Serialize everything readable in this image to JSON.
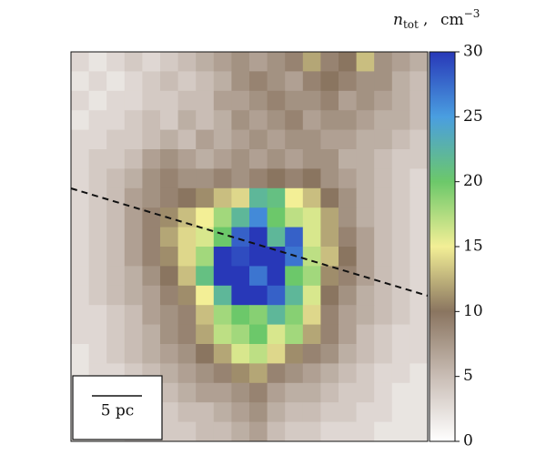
{
  "chart_data": {
    "type": "heatmap",
    "colorbar_label": {
      "symbol": "n",
      "subscript": "tot",
      "unit": "cm",
      "exponent": "−3"
    },
    "scale_bar_label": "5 pc",
    "zlim": [
      0,
      30
    ],
    "zticks": [
      0,
      5,
      10,
      15,
      20,
      25,
      30
    ],
    "colorscale": [
      "#ffffff",
      "#c9bdb5",
      "#8a7560",
      "#f3ef96",
      "#6cc86a",
      "#4a9ee0",
      "#2838b8"
    ],
    "z": [
      [
        3,
        2,
        3,
        4,
        3,
        4,
        5,
        6,
        7,
        8,
        7,
        8,
        9,
        12,
        9,
        10,
        13,
        8,
        7,
        6
      ],
      [
        2,
        3,
        2,
        3,
        4,
        5,
        4,
        5,
        6,
        8,
        9,
        8,
        7,
        9,
        10,
        9,
        8,
        8,
        6,
        5
      ],
      [
        3,
        2,
        3,
        3,
        4,
        4,
        5,
        5,
        7,
        7,
        8,
        9,
        8,
        8,
        9,
        7,
        8,
        7,
        6,
        5
      ],
      [
        2,
        3,
        3,
        4,
        5,
        4,
        6,
        5,
        6,
        8,
        7,
        8,
        9,
        7,
        8,
        8,
        7,
        6,
        6,
        5
      ],
      [
        3,
        3,
        4,
        4,
        5,
        6,
        5,
        7,
        6,
        7,
        8,
        7,
        8,
        8,
        7,
        7,
        6,
        6,
        5,
        4
      ],
      [
        3,
        4,
        4,
        5,
        7,
        8,
        7,
        6,
        7,
        8,
        7,
        8,
        7,
        8,
        8,
        6,
        6,
        5,
        4,
        4
      ],
      [
        3,
        4,
        5,
        6,
        8,
        9,
        8,
        8,
        9,
        8,
        9,
        10,
        9,
        10,
        8,
        7,
        6,
        5,
        4,
        3
      ],
      [
        3,
        4,
        5,
        7,
        8,
        9,
        10,
        11,
        13,
        14,
        22,
        21,
        15,
        13,
        10,
        8,
        6,
        5,
        4,
        3
      ],
      [
        3,
        4,
        5,
        7,
        9,
        11,
        13,
        15,
        18,
        22,
        26,
        20,
        17,
        16,
        12,
        8,
        6,
        5,
        4,
        3
      ],
      [
        3,
        4,
        5,
        7,
        9,
        12,
        14,
        16,
        20,
        28,
        30,
        22,
        28,
        16,
        12,
        9,
        7,
        5,
        4,
        3
      ],
      [
        3,
        4,
        5,
        7,
        9,
        11,
        14,
        18,
        30,
        29,
        30,
        30,
        27,
        17,
        13,
        10,
        7,
        5,
        4,
        3
      ],
      [
        3,
        4,
        5,
        6,
        8,
        10,
        13,
        21,
        30,
        30,
        27,
        30,
        20,
        18,
        11,
        9,
        7,
        5,
        4,
        3
      ],
      [
        3,
        4,
        5,
        6,
        7,
        9,
        11,
        15,
        22,
        30,
        30,
        28,
        22,
        16,
        10,
        8,
        6,
        5,
        4,
        3
      ],
      [
        3,
        3,
        4,
        5,
        7,
        8,
        9,
        13,
        18,
        20,
        19,
        22,
        19,
        14,
        9,
        7,
        6,
        5,
        4,
        3
      ],
      [
        3,
        3,
        4,
        5,
        6,
        8,
        9,
        12,
        17,
        18,
        20,
        16,
        18,
        12,
        9,
        7,
        5,
        4,
        3,
        3
      ],
      [
        2,
        3,
        4,
        5,
        6,
        7,
        8,
        10,
        12,
        16,
        17,
        14,
        11,
        9,
        8,
        6,
        5,
        4,
        3,
        3
      ],
      [
        2,
        3,
        3,
        4,
        5,
        6,
        7,
        8,
        9,
        11,
        12,
        9,
        8,
        7,
        6,
        5,
        4,
        3,
        3,
        2
      ],
      [
        2,
        3,
        3,
        4,
        4,
        5,
        6,
        7,
        7,
        8,
        9,
        7,
        6,
        6,
        5,
        4,
        4,
        3,
        2,
        2
      ],
      [
        2,
        2,
        3,
        3,
        4,
        4,
        5,
        5,
        6,
        7,
        8,
        6,
        5,
        5,
        4,
        4,
        3,
        3,
        2,
        2
      ],
      [
        2,
        2,
        2,
        3,
        3,
        4,
        4,
        5,
        5,
        6,
        7,
        5,
        4,
        4,
        3,
        3,
        3,
        2,
        2,
        2
      ]
    ]
  }
}
